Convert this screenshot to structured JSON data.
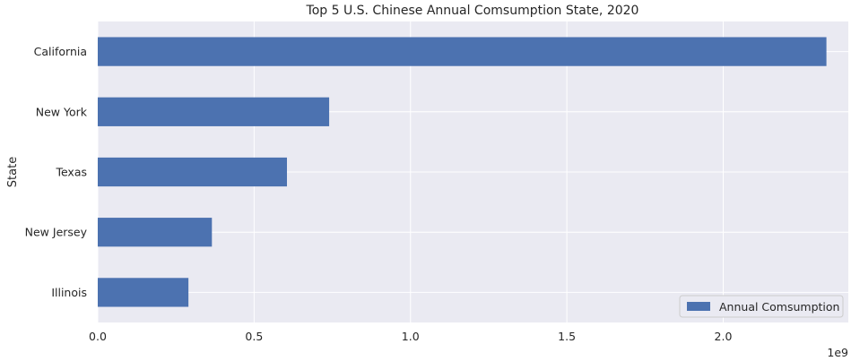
{
  "chart_data": {
    "type": "bar",
    "orientation": "horizontal",
    "title": "Top 5 U.S. Chinese Annual Comsumption State, 2020",
    "xlabel": "",
    "ylabel": "State",
    "x_offset_label": "1e9",
    "xlim": [
      0,
      2.4
    ],
    "x_ticks": [
      {
        "value": 0.0,
        "label": "0.0"
      },
      {
        "value": 0.5,
        "label": "0.5"
      },
      {
        "value": 1.0,
        "label": "1.0"
      },
      {
        "value": 1.5,
        "label": "1.5"
      },
      {
        "value": 2.0,
        "label": "2.0"
      }
    ],
    "categories": [
      "California",
      "New York",
      "Texas",
      "New Jersey",
      "Illinois"
    ],
    "series": [
      {
        "name": "Annual Comsumption",
        "values": [
          2.33,
          0.74,
          0.605,
          0.365,
          0.29
        ]
      }
    ],
    "grid": true,
    "legend_position": "bottom-right",
    "colors": {
      "bar": "#4c72b0",
      "plot_background": "#eaeaf2",
      "grid": "#ffffff",
      "text": "#262626"
    }
  }
}
